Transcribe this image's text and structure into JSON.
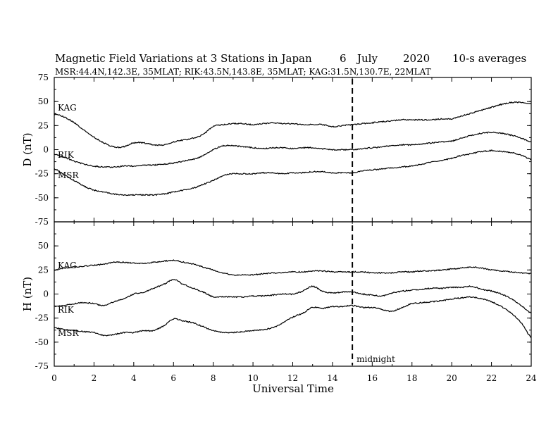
{
  "title": {
    "main": "Magnetic Field Variations at 3 Stations in Japan",
    "day": "6",
    "month": "July",
    "year": "2020",
    "averaging": "10-s averages"
  },
  "subtitle": "MSR:44.4N,142.3E, 35MLAT;  RIK:43.5N,143.8E, 35MLAT;  KAG:31.5N,130.7E, 22MLAT",
  "xlabel": "Universal Time",
  "midnight_label": "midnight",
  "chart_data": [
    {
      "type": "line",
      "panel": "top",
      "ylabel": "D (nT)",
      "xlim": [
        0,
        24
      ],
      "ylim": [
        -75,
        75
      ],
      "x_ticks": [
        "0",
        "2",
        "4",
        "6",
        "8",
        "10",
        "12",
        "14",
        "16",
        "18",
        "20",
        "22",
        "24"
      ],
      "y_ticks": [
        "75",
        "50",
        "25",
        "0",
        "-25",
        "-50",
        "-75"
      ],
      "midnight_ut": 15,
      "x": [
        0,
        0.5,
        1,
        1.5,
        2,
        2.5,
        3,
        3.5,
        4,
        4.5,
        5,
        5.5,
        6,
        6.5,
        7,
        7.5,
        8,
        8.5,
        9,
        9.5,
        10,
        10.5,
        11,
        11.5,
        12,
        12.5,
        13,
        13.5,
        14,
        14.5,
        15,
        15.5,
        16,
        16.5,
        17,
        17.5,
        18,
        18.5,
        19,
        19.5,
        20,
        20.5,
        21,
        21.5,
        22,
        22.5,
        23,
        23.5,
        24
      ],
      "series": [
        {
          "name": "KAG",
          "values": [
            37,
            34,
            28,
            20,
            13,
            7,
            3,
            3,
            7,
            7,
            5,
            5,
            8,
            10,
            12,
            16,
            24,
            26,
            27,
            27,
            26,
            27,
            28,
            27,
            27,
            26,
            26,
            26,
            24,
            25,
            26,
            27,
            28,
            29,
            30,
            31,
            31,
            31,
            31,
            32,
            32,
            35,
            38,
            41,
            44,
            47,
            49,
            49,
            48
          ]
        },
        {
          "name": "RIK",
          "values": [
            -5,
            -8,
            -12,
            -15,
            -17,
            -18,
            -18,
            -17,
            -17,
            -16,
            -16,
            -15,
            -14,
            -12,
            -10,
            -6,
            0,
            4,
            4,
            3,
            2,
            1,
            2,
            2,
            1,
            2,
            2,
            1,
            0,
            0,
            0,
            1,
            2,
            3,
            4,
            5,
            5,
            6,
            7,
            8,
            9,
            12,
            15,
            17,
            18,
            17,
            15,
            12,
            8
          ]
        },
        {
          "name": "MSR",
          "values": [
            -20,
            -26,
            -32,
            -38,
            -42,
            -44,
            -46,
            -47,
            -47,
            -47,
            -47,
            -46,
            -44,
            -42,
            -40,
            -36,
            -32,
            -27,
            -25,
            -25,
            -25,
            -24,
            -24,
            -25,
            -24,
            -24,
            -23,
            -23,
            -24,
            -24,
            -24,
            -22,
            -21,
            -20,
            -19,
            -18,
            -17,
            -15,
            -13,
            -11,
            -9,
            -6,
            -4,
            -2,
            -1,
            -2,
            -3,
            -6,
            -10
          ]
        }
      ]
    },
    {
      "type": "line",
      "panel": "bottom",
      "ylabel": "H (nT)",
      "xlabel": "Universal Time",
      "xlim": [
        0,
        24
      ],
      "ylim": [
        -75,
        75
      ],
      "x_ticks": [
        "0",
        "2",
        "4",
        "6",
        "8",
        "10",
        "12",
        "14",
        "16",
        "18",
        "20",
        "22",
        "24"
      ],
      "y_ticks": [
        "75",
        "50",
        "25",
        "0",
        "-25",
        "-50",
        "-75"
      ],
      "midnight_ut": 15,
      "x": [
        0,
        0.5,
        1,
        1.5,
        2,
        2.5,
        3,
        3.5,
        4,
        4.5,
        5,
        5.5,
        6,
        6.5,
        7,
        7.5,
        8,
        8.5,
        9,
        9.5,
        10,
        10.5,
        11,
        11.5,
        12,
        12.5,
        13,
        13.5,
        14,
        14.5,
        15,
        15.5,
        16,
        16.5,
        17,
        17.5,
        18,
        18.5,
        19,
        19.5,
        20,
        20.5,
        21,
        21.5,
        22,
        22.5,
        23,
        23.5,
        24
      ],
      "series": [
        {
          "name": "KAG",
          "values": [
            25,
            27,
            28,
            29,
            30,
            31,
            33,
            33,
            32,
            32,
            33,
            34,
            35,
            33,
            31,
            28,
            25,
            22,
            20,
            20,
            20,
            21,
            22,
            22,
            23,
            23,
            24,
            24,
            23,
            23,
            23,
            23,
            22,
            22,
            22,
            23,
            23,
            24,
            24,
            25,
            26,
            27,
            28,
            27,
            25,
            24,
            23,
            22,
            21
          ]
        },
        {
          "name": "RIK",
          "values": [
            -13,
            -12,
            -10,
            -9,
            -10,
            -12,
            -8,
            -5,
            0,
            2,
            6,
            10,
            15,
            10,
            6,
            2,
            -3,
            -3,
            -3,
            -3,
            -2,
            -2,
            -1,
            0,
            0,
            3,
            8,
            3,
            1,
            2,
            2,
            0,
            -1,
            -2,
            1,
            3,
            4,
            5,
            6,
            6,
            7,
            7,
            8,
            5,
            3,
            0,
            -5,
            -12,
            -20
          ]
        },
        {
          "name": "MSR",
          "values": [
            -35,
            -37,
            -38,
            -39,
            -40,
            -43,
            -42,
            -40,
            -40,
            -38,
            -38,
            -33,
            -26,
            -28,
            -30,
            -34,
            -38,
            -40,
            -40,
            -39,
            -38,
            -37,
            -35,
            -30,
            -24,
            -20,
            -14,
            -15,
            -13,
            -13,
            -12,
            -14,
            -14,
            -16,
            -18,
            -14,
            -10,
            -9,
            -8,
            -7,
            -5,
            -4,
            -3,
            -5,
            -8,
            -13,
            -20,
            -30,
            -45
          ]
        }
      ]
    }
  ]
}
